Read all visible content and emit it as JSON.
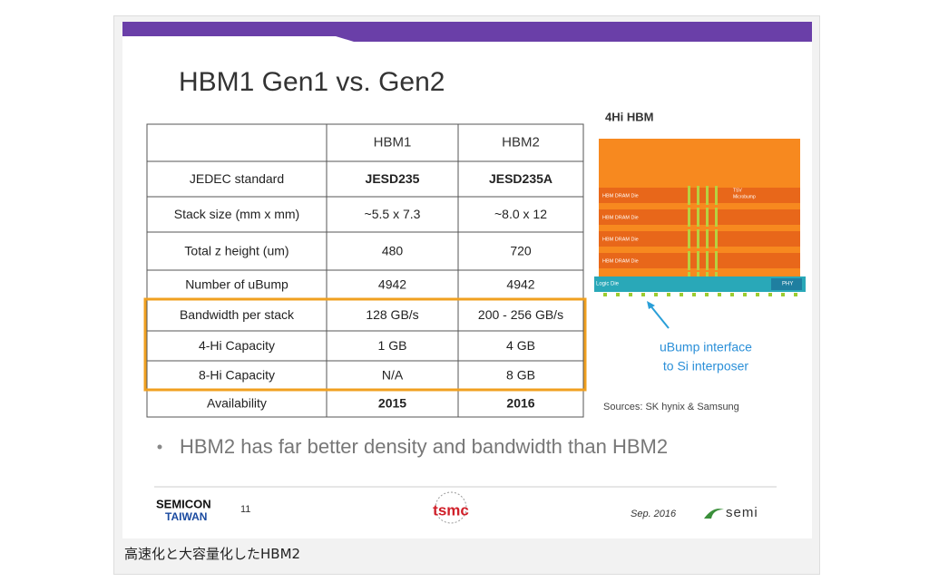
{
  "slide": {
    "title": "HBM1 Gen1 vs. Gen2",
    "table": {
      "columns": [
        "HBM1",
        "HBM2"
      ],
      "rows": [
        [
          "JEDEC standard",
          "JESD235",
          "JESD235A"
        ],
        [
          "Stack size (mm x mm)",
          "~5.5 x 7.3",
          "~8.0 x 12"
        ],
        [
          "Total z height (um)",
          "480",
          "720"
        ],
        [
          "Number of uBump",
          "4942",
          "4942"
        ],
        [
          "Bandwidth per stack",
          "128 GB/s",
          "200 - 256 GB/s"
        ],
        [
          "4-Hi Capacity",
          "1 GB",
          "4 GB"
        ],
        [
          "8-Hi Capacity",
          "N/A",
          "8 GB"
        ],
        [
          "Availability",
          "2015",
          "2016"
        ]
      ]
    },
    "diagram": {
      "title": "4Hi HBM",
      "dies": [
        "HBM DRAM Die",
        "HBM DRAM Die",
        "HBM DRAM Die",
        "HBM DRAM Die"
      ],
      "tsv_label": "TSV",
      "bump_label": "Microbump",
      "logic_label": "Logic Die",
      "phy_label": "PHY",
      "callout": [
        "uBump interface",
        "to Si interposer"
      ],
      "sources": "Sources: SK hynix & Samsung"
    },
    "bullet": "HBM2 has far better density and bandwidth than HBM2",
    "footer": {
      "logo_top": "SEMICON",
      "logo_bottom": "TAIWAN",
      "page": "11",
      "tsmc": "tsmc",
      "date": "Sep. 2016",
      "semi": "semi"
    }
  },
  "caption": "高速化と大容量化したHBM2"
}
